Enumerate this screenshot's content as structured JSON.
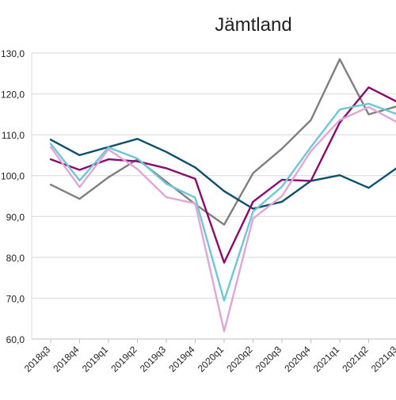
{
  "chart_data": {
    "type": "line",
    "title": "Jämtland",
    "xlabel": "",
    "ylabel": "",
    "ylim": [
      60,
      130
    ],
    "yticks": [
      "60,0",
      "70,0",
      "80,0",
      "90,0",
      "100,0",
      "110,0",
      "120,0",
      "130,0"
    ],
    "grid": true,
    "legend": "none",
    "categories": [
      "2018q3",
      "2018q4",
      "2019q1",
      "2019q2",
      "2019q3",
      "2019q4",
      "2020q1",
      "2020q2",
      "2020q3",
      "2020q4",
      "2021q1",
      "2021q2",
      "2021q3"
    ],
    "series": [
      {
        "color": "#7f7f7f",
        "values": [
          97.8,
          94.3,
          99.6,
          104.0,
          98.5,
          93.0,
          88.0,
          100.6,
          106.6,
          113.6,
          128.5,
          115.0,
          117.0
        ]
      },
      {
        "color": "#0b4f6c",
        "values": [
          108.8,
          105.0,
          107.0,
          109.0,
          105.8,
          102.0,
          96.2,
          91.9,
          93.6,
          98.7,
          100.1,
          97.0,
          102.0
        ]
      },
      {
        "color": "#8b0a6e",
        "values": [
          104.0,
          101.4,
          104.0,
          103.5,
          101.8,
          99.2,
          78.7,
          93.6,
          99.0,
          98.7,
          113.0,
          121.6,
          118.0
        ]
      },
      {
        "color": "#6ec6d8",
        "values": [
          107.8,
          98.8,
          106.9,
          104.2,
          98.0,
          94.6,
          69.4,
          91.2,
          97.3,
          107.0,
          116.2,
          117.6,
          115.0
        ]
      },
      {
        "color": "#e0a6d6",
        "values": [
          107.0,
          97.2,
          106.4,
          101.6,
          94.7,
          93.2,
          61.9,
          89.5,
          95.0,
          106.0,
          113.6,
          116.8,
          113.0
        ]
      }
    ]
  }
}
